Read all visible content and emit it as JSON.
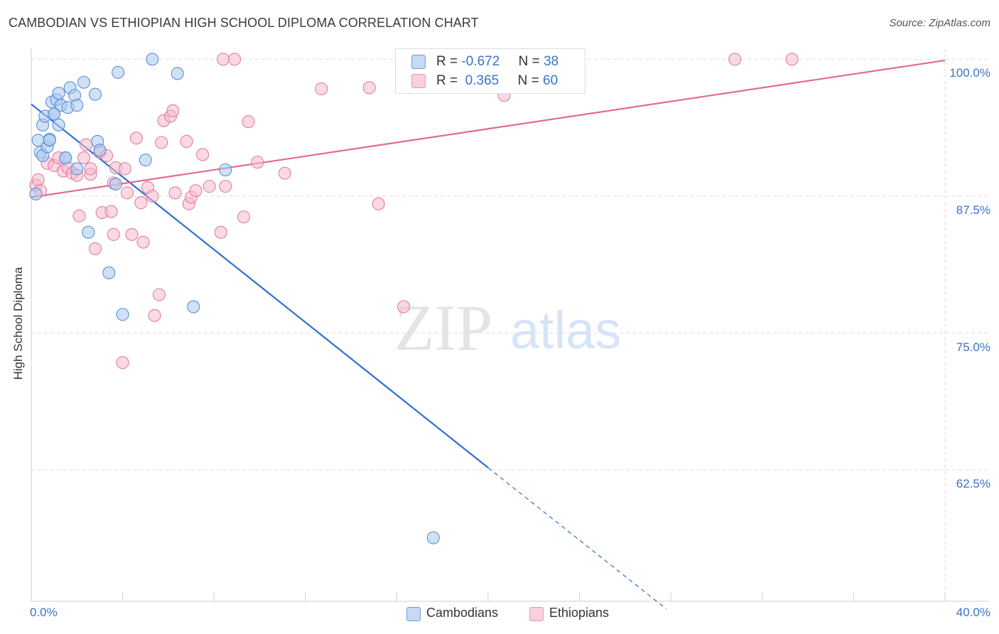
{
  "title": "CAMBODIAN VS ETHIOPIAN HIGH SCHOOL DIPLOMA CORRELATION CHART",
  "source": "Source: ZipAtlas.com",
  "watermark": {
    "zip": "ZIP",
    "atlas": "atlas"
  },
  "legend_box": {
    "rows": [
      {
        "r_label": "R =",
        "r_value": "-0.672",
        "n_label": "N =",
        "n_value": "38"
      },
      {
        "r_label": "R =",
        "r_value": " 0.365",
        "n_label": "N =",
        "n_value": "60"
      }
    ]
  },
  "bottom_legend": {
    "cambodians": "Cambodians",
    "ethiopians": "Ethiopians"
  },
  "colors": {
    "cambodian_fill": "#aac8ef",
    "cambodian_stroke": "#5b8fd6",
    "cambodian_line": "#2d6fd1",
    "ethiopian_fill": "#f6b9cc",
    "ethiopian_stroke": "#e07fa0",
    "ethiopian_line": "#e26a93",
    "tick_label": "#3a74c8",
    "grid": "#dedede"
  },
  "chart_data": {
    "type": "scatter",
    "title": "CAMBODIAN VS ETHIOPIAN HIGH SCHOOL DIPLOMA CORRELATION CHART",
    "xlabel": "",
    "ylabel": "High School Diploma",
    "xlim": [
      0,
      40
    ],
    "ylim": [
      50.5,
      101
    ],
    "x_tick_labels": [
      {
        "value": 0,
        "label": "0.0%"
      },
      {
        "value": 40,
        "label": "40.0%"
      }
    ],
    "y_tick_labels": [
      {
        "value": 100,
        "label": "100.0%"
      },
      {
        "value": 87.5,
        "label": "87.5%"
      },
      {
        "value": 75,
        "label": "75.0%"
      },
      {
        "value": 62.5,
        "label": "62.5%"
      }
    ],
    "x_minor_ticks": [
      0,
      4,
      8,
      12,
      16,
      20,
      24,
      28,
      32,
      36,
      40
    ],
    "series": [
      {
        "name": "Cambodians",
        "r": -0.672,
        "n": 38,
        "points": [
          [
            0.2,
            87.7
          ],
          [
            0.3,
            92.6
          ],
          [
            0.4,
            91.5
          ],
          [
            0.5,
            91.2
          ],
          [
            0.5,
            94.0
          ],
          [
            0.6,
            94.8
          ],
          [
            0.7,
            92.0
          ],
          [
            0.8,
            92.7
          ],
          [
            0.9,
            96.1
          ],
          [
            1.0,
            95.0
          ],
          [
            1.1,
            96.3
          ],
          [
            1.2,
            96.9
          ],
          [
            1.3,
            95.8
          ],
          [
            1.5,
            91.0
          ],
          [
            1.6,
            95.6
          ],
          [
            1.7,
            97.4
          ],
          [
            1.9,
            96.7
          ],
          [
            2.0,
            95.8
          ],
          [
            2.0,
            90.0
          ],
          [
            2.3,
            97.9
          ],
          [
            2.5,
            84.2
          ],
          [
            2.8,
            96.8
          ],
          [
            2.9,
            92.5
          ],
          [
            3.0,
            91.7
          ],
          [
            3.4,
            80.5
          ],
          [
            3.7,
            88.6
          ],
          [
            3.8,
            98.8
          ],
          [
            4.0,
            76.7
          ],
          [
            5.0,
            90.8
          ],
          [
            5.3,
            100.0
          ],
          [
            6.4,
            98.7
          ],
          [
            7.1,
            77.4
          ],
          [
            8.5,
            89.9
          ],
          [
            17.6,
            56.3
          ],
          [
            1.5,
            91.0
          ],
          [
            1.2,
            94.0
          ],
          [
            0.8,
            92.6
          ],
          [
            1.0,
            95.0
          ]
        ],
        "trend": {
          "x0": 0,
          "y0": 95.9,
          "x1": 20,
          "y1": 62.7,
          "dashed_to_x": 27.8,
          "dashed_to_y": 49.8
        }
      },
      {
        "name": "Ethiopians",
        "r": 0.365,
        "n": 60,
        "points": [
          [
            0.2,
            88.5
          ],
          [
            0.3,
            89.0
          ],
          [
            0.4,
            88.0
          ],
          [
            0.7,
            90.5
          ],
          [
            1.0,
            90.3
          ],
          [
            1.2,
            91.0
          ],
          [
            1.4,
            89.8
          ],
          [
            1.6,
            90.1
          ],
          [
            1.8,
            89.6
          ],
          [
            2.0,
            89.4
          ],
          [
            2.1,
            85.7
          ],
          [
            2.3,
            91.0
          ],
          [
            2.4,
            92.2
          ],
          [
            2.6,
            89.5
          ],
          [
            2.8,
            82.7
          ],
          [
            3.0,
            91.5
          ],
          [
            3.1,
            86.0
          ],
          [
            3.3,
            91.2
          ],
          [
            3.5,
            86.1
          ],
          [
            3.6,
            88.7
          ],
          [
            3.7,
            90.1
          ],
          [
            4.0,
            72.3
          ],
          [
            4.1,
            90.0
          ],
          [
            4.2,
            87.8
          ],
          [
            4.4,
            84.0
          ],
          [
            4.6,
            92.8
          ],
          [
            4.8,
            86.9
          ],
          [
            4.9,
            83.3
          ],
          [
            5.1,
            88.3
          ],
          [
            5.3,
            87.5
          ],
          [
            5.6,
            78.5
          ],
          [
            5.7,
            92.4
          ],
          [
            5.8,
            94.4
          ],
          [
            6.1,
            94.8
          ],
          [
            6.2,
            95.3
          ],
          [
            6.3,
            87.8
          ],
          [
            6.8,
            92.5
          ],
          [
            6.9,
            86.8
          ],
          [
            7.0,
            87.4
          ],
          [
            7.2,
            88.0
          ],
          [
            7.5,
            91.3
          ],
          [
            7.8,
            88.4
          ],
          [
            8.3,
            84.2
          ],
          [
            8.4,
            100.0
          ],
          [
            8.5,
            88.4
          ],
          [
            8.9,
            100.0
          ],
          [
            9.3,
            85.6
          ],
          [
            9.5,
            94.3
          ],
          [
            9.9,
            90.6
          ],
          [
            11.1,
            89.6
          ],
          [
            12.7,
            97.3
          ],
          [
            14.8,
            97.4
          ],
          [
            15.2,
            86.8
          ],
          [
            16.3,
            77.4
          ],
          [
            20.7,
            96.7
          ],
          [
            30.8,
            100.0
          ],
          [
            33.3,
            100.0
          ],
          [
            5.4,
            76.6
          ],
          [
            3.6,
            84.0
          ],
          [
            2.6,
            90.0
          ]
        ],
        "trend": {
          "x0": 0,
          "y0": 87.4,
          "x1": 40,
          "y1": 99.9
        }
      }
    ]
  }
}
